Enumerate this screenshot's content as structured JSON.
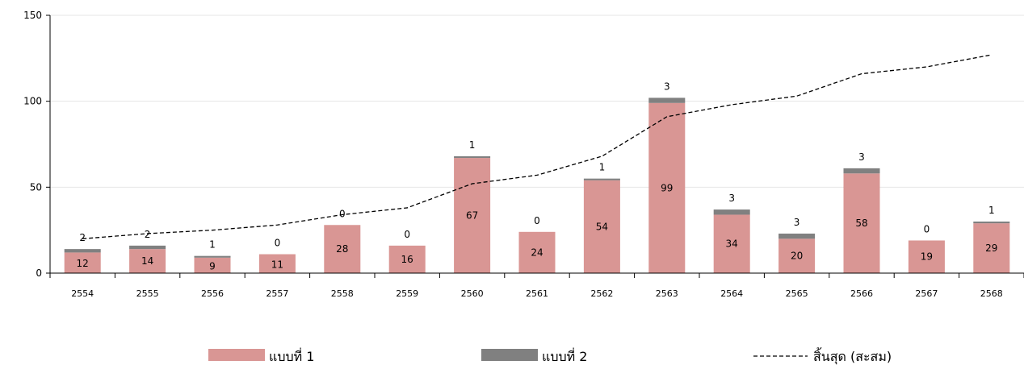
{
  "chart_data": {
    "type": "bar",
    "stacked": true,
    "categories": [
      "2554",
      "2555",
      "2556",
      "2557",
      "2558",
      "2559",
      "2560",
      "2561",
      "2562",
      "2563",
      "2564",
      "2565",
      "2566",
      "2567",
      "2568"
    ],
    "series": [
      {
        "name": "แบบที่ 1",
        "type": "bar",
        "color": "#d99694",
        "values": [
          12,
          14,
          9,
          11,
          28,
          16,
          67,
          24,
          54,
          99,
          34,
          20,
          58,
          19,
          29
        ]
      },
      {
        "name": "แบบที่ 2",
        "type": "bar",
        "color": "#808080",
        "values": [
          2,
          2,
          1,
          0,
          0,
          0,
          1,
          0,
          1,
          3,
          3,
          3,
          3,
          0,
          1
        ]
      },
      {
        "name": "สิ้นสุด (สะสม)",
        "type": "line",
        "style": "dashed",
        "color": "#000000",
        "values": [
          20,
          23,
          25,
          28,
          34,
          38,
          52,
          57,
          68,
          91,
          98,
          103,
          116,
          120,
          127
        ]
      }
    ],
    "yticks": [
      0,
      50,
      100,
      150
    ],
    "ylim": [
      0,
      150
    ],
    "grid": true,
    "legend": "bottom"
  }
}
